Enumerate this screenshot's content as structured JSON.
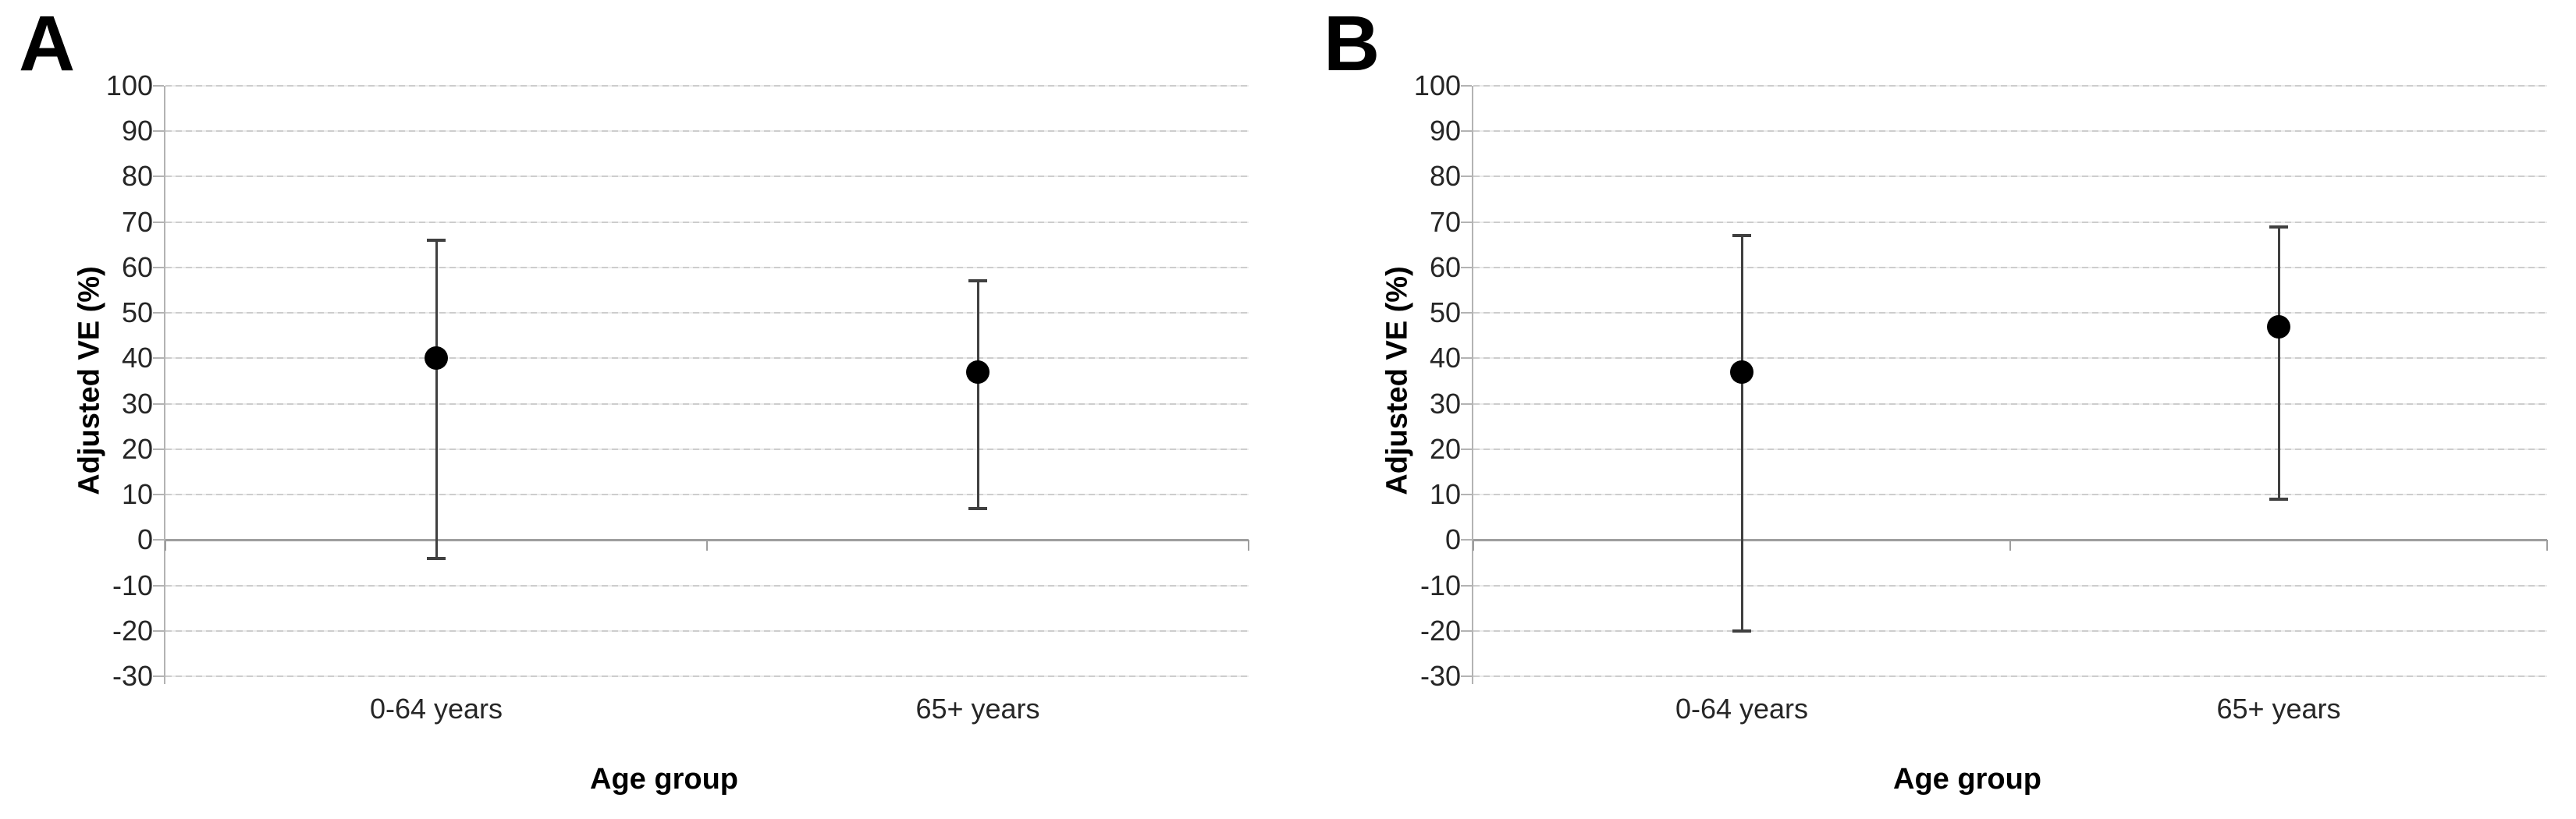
{
  "colors": {
    "background": "#ffffff",
    "gridline_dash_dark": "#cdcdcd",
    "gridline_dash_light": "#ebebeb",
    "zero_axis": "#9e9e9e",
    "y_axis_line": "#b3b3b3",
    "tick_mark": "#b3b3b3",
    "error_bar": "#404040",
    "marker": "#000000",
    "text": "#262626"
  },
  "chart_data": [
    {
      "type": "scatter",
      "panel_label": "A",
      "title": "",
      "xlabel": "Age group",
      "ylabel": "Adjusted VE (%)",
      "ylim": [
        -30,
        100
      ],
      "ytick_step": 10,
      "yticks": [
        100,
        90,
        80,
        70,
        60,
        50,
        40,
        30,
        20,
        10,
        0,
        -10,
        -20,
        -30
      ],
      "categories": [
        "0-64 years",
        "65+ years"
      ],
      "grid": true,
      "legend": false,
      "series": [
        {
          "name": "Adjusted VE (%)",
          "marker": "filled-circle",
          "values": [
            40,
            37
          ],
          "ci_low": [
            -4,
            7
          ],
          "ci_high": [
            66,
            57
          ]
        }
      ]
    },
    {
      "type": "scatter",
      "panel_label": "B",
      "title": "",
      "xlabel": "Age group",
      "ylabel": "Adjusted VE (%)",
      "ylim": [
        -30,
        100
      ],
      "ytick_step": 10,
      "yticks": [
        100,
        90,
        80,
        70,
        60,
        50,
        40,
        30,
        20,
        10,
        0,
        -10,
        -20,
        -30
      ],
      "categories": [
        "0-64 years",
        "65+ years"
      ],
      "grid": true,
      "legend": false,
      "series": [
        {
          "name": "Adjusted VE (%)",
          "marker": "filled-circle",
          "values": [
            37,
            47
          ],
          "ci_low": [
            -20,
            9
          ],
          "ci_high": [
            67,
            69
          ]
        }
      ]
    }
  ]
}
